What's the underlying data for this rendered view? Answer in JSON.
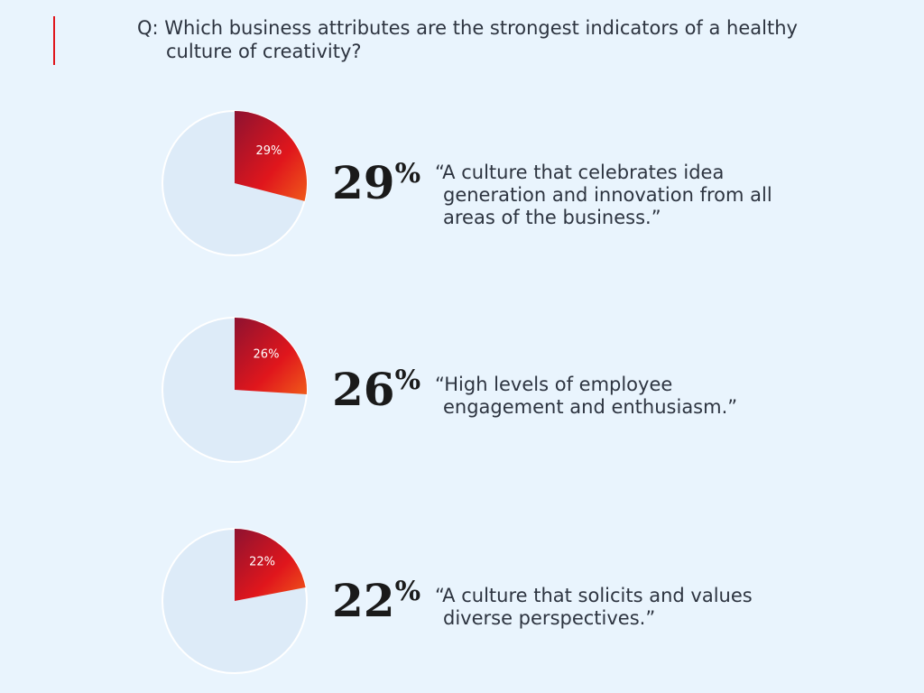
{
  "title": "Q: Which business attributes are the strongest indicators of a healthy culture of creativity?",
  "chart_data": [
    {
      "type": "pie",
      "values": [
        29
      ],
      "value_labels": [
        "29%"
      ],
      "color": "#e0161c",
      "caption": "“A culture that celebrates idea generation and innovation from all areas of the business.”"
    },
    {
      "type": "pie",
      "values": [
        26
      ],
      "value_labels": [
        "26%"
      ],
      "color": "#e0161c",
      "caption": "“High levels of employee engagement and enthusiasm.”"
    },
    {
      "type": "pie",
      "values": [
        22
      ],
      "value_labels": [
        "22%"
      ],
      "color": "#e0161c",
      "caption": "“A culture that solicits and values diverse perspectives.”"
    }
  ]
}
